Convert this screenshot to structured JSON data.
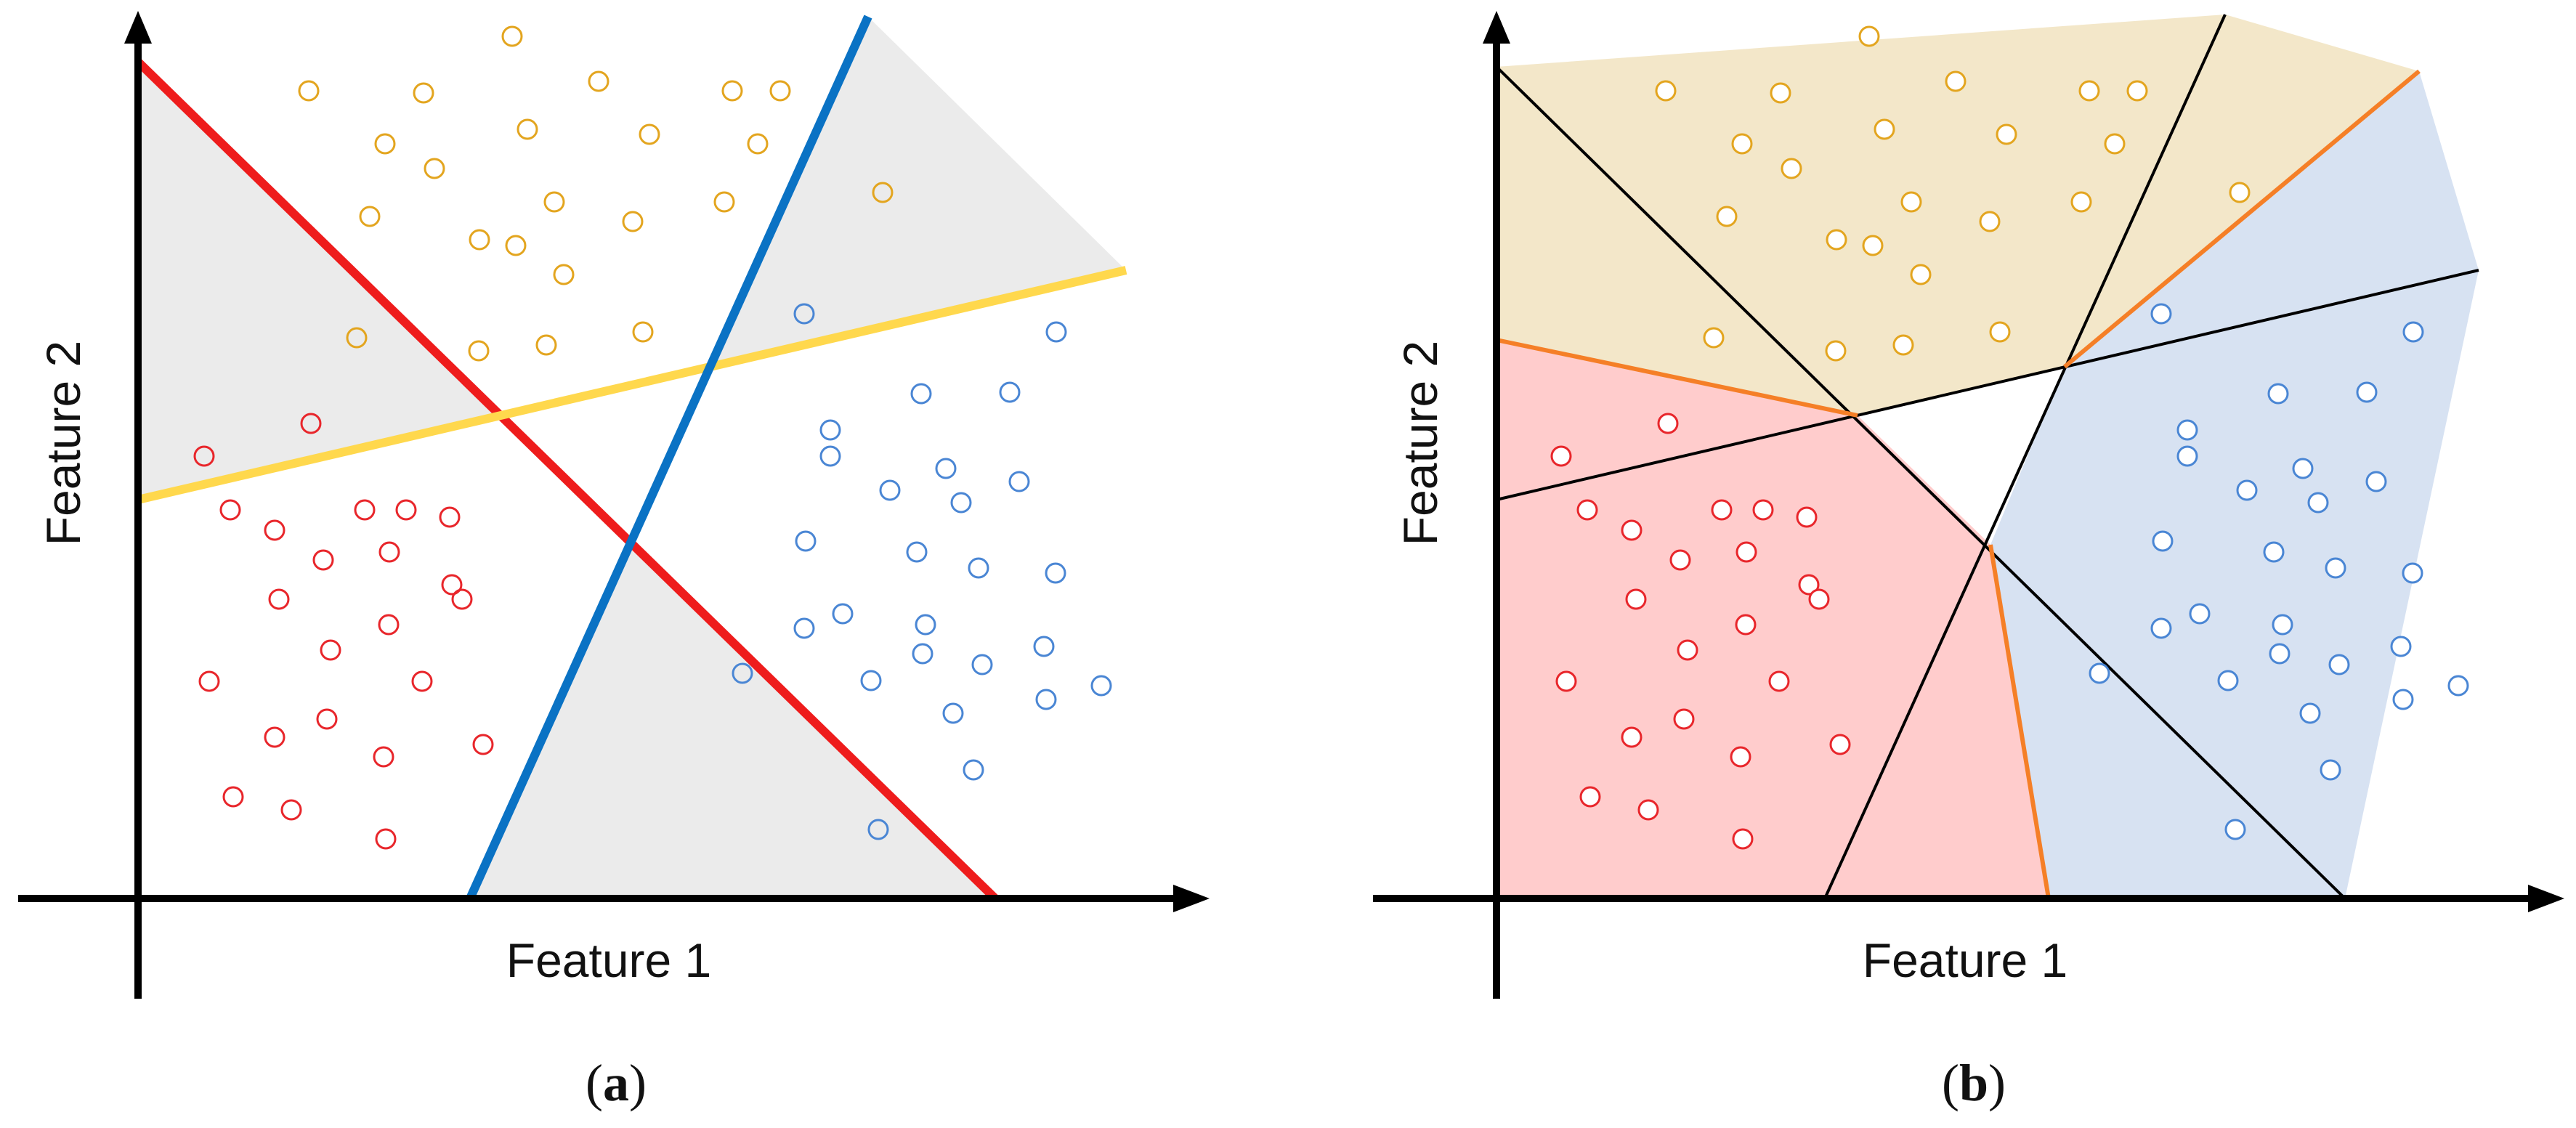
{
  "panels": [
    {
      "id": "a",
      "label": "a",
      "xlabel": "Feature 1",
      "ylabel": "Feature 2"
    },
    {
      "id": "b",
      "label": "b",
      "xlabel": "Feature 1",
      "ylabel": "Feature 2"
    }
  ],
  "colors": {
    "class_red": "#e8262b",
    "class_orange": "#e3a51f",
    "class_blue": "#4a86d4",
    "line_red": "#ee1c1c",
    "line_blue": "#0a72c4",
    "line_yellow": "#ffd84d",
    "line_orange": "#f57f27",
    "region_gray": "#ebebeb",
    "region_red": "#ffcccc",
    "region_orange": "#f3e7c9",
    "region_blue": "#d7e2f2"
  }
}
